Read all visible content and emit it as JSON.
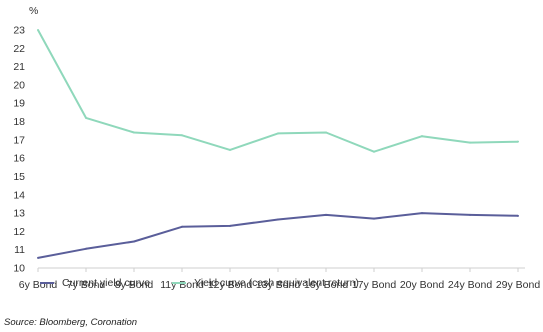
{
  "chart_data": {
    "type": "line",
    "unit_label": "%",
    "categories": [
      "6y Bond",
      "7y Bond",
      "8y Bond",
      "11y Bond",
      "12y Bond",
      "13y Bond",
      "16y Bond",
      "17y Bond",
      "20y Bond",
      "24y Bond",
      "29y Bond"
    ],
    "ylim": [
      10,
      23
    ],
    "yticks": [
      10,
      11,
      12,
      13,
      14,
      15,
      16,
      17,
      18,
      19,
      20,
      21,
      22,
      23
    ],
    "grid": false,
    "legend_position": "bottom",
    "series": [
      {
        "name": "Current yield curve",
        "color": "#5a5e9a",
        "values": [
          10.55,
          11.05,
          11.45,
          12.25,
          12.3,
          12.65,
          12.9,
          12.7,
          13.0,
          12.9,
          12.85
        ]
      },
      {
        "name": "Yield curve (cash equivalent return)",
        "color": "#8fd8bb",
        "values": [
          23.0,
          18.2,
          17.4,
          17.25,
          16.45,
          17.35,
          17.4,
          16.35,
          17.2,
          16.85,
          16.9
        ]
      }
    ]
  },
  "source": "Source: Bloomberg, Coronation"
}
